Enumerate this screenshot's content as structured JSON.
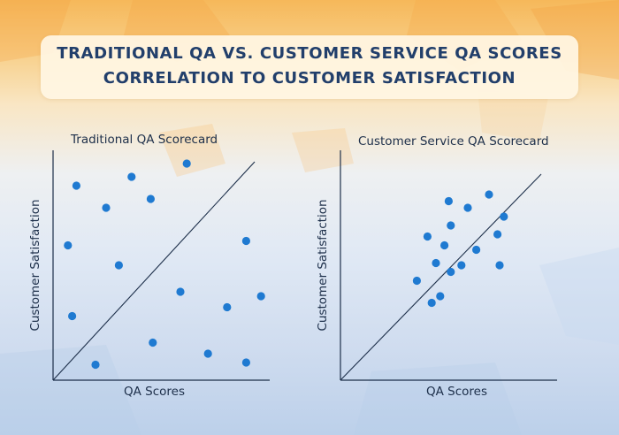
{
  "title": {
    "line1": "TRADITIONAL QA VS. CUSTOMER SERVICE QA SCORES",
    "line2": "CORRELATION TO CUSTOMER SATISFACTION"
  },
  "colors": {
    "point": "#1f7ad1",
    "axis": "#1d2f4a",
    "title_text": "#223f6b"
  },
  "chart_data": [
    {
      "type": "scatter",
      "title": "Traditional QA Scorecard",
      "xlabel": "QA Scores",
      "ylabel": "Customer Satisfaction",
      "xlim": [
        0,
        100
      ],
      "ylim": [
        0,
        100
      ],
      "grid": false,
      "tick_labels": false,
      "reference_line": "diagonal",
      "points": [
        {
          "x": 11,
          "y": 88
        },
        {
          "x": 25,
          "y": 78
        },
        {
          "x": 37,
          "y": 92
        },
        {
          "x": 46,
          "y": 82
        },
        {
          "x": 63,
          "y": 98
        },
        {
          "x": 7,
          "y": 61
        },
        {
          "x": 31,
          "y": 52
        },
        {
          "x": 91,
          "y": 63
        },
        {
          "x": 60,
          "y": 40
        },
        {
          "x": 98,
          "y": 38
        },
        {
          "x": 9,
          "y": 29
        },
        {
          "x": 82,
          "y": 33
        },
        {
          "x": 47,
          "y": 17
        },
        {
          "x": 20,
          "y": 7
        },
        {
          "x": 73,
          "y": 12
        },
        {
          "x": 91,
          "y": 8
        }
      ]
    },
    {
      "type": "scatter",
      "title": "Customer Service QA Scorecard",
      "xlabel": "QA Scores",
      "ylabel": "Customer Satisfaction",
      "xlim": [
        0,
        100
      ],
      "ylim": [
        0,
        100
      ],
      "grid": false,
      "tick_labels": false,
      "reference_line": "diagonal",
      "points": [
        {
          "x": 70,
          "y": 84
        },
        {
          "x": 60,
          "y": 78
        },
        {
          "x": 77,
          "y": 74
        },
        {
          "x": 52,
          "y": 70
        },
        {
          "x": 41,
          "y": 65
        },
        {
          "x": 74,
          "y": 66
        },
        {
          "x": 49,
          "y": 61
        },
        {
          "x": 64,
          "y": 59
        },
        {
          "x": 45,
          "y": 53
        },
        {
          "x": 57,
          "y": 52
        },
        {
          "x": 75,
          "y": 52
        },
        {
          "x": 36,
          "y": 45
        },
        {
          "x": 52,
          "y": 49
        },
        {
          "x": 47,
          "y": 38
        },
        {
          "x": 43,
          "y": 35
        },
        {
          "x": 51,
          "y": 81
        }
      ]
    }
  ]
}
